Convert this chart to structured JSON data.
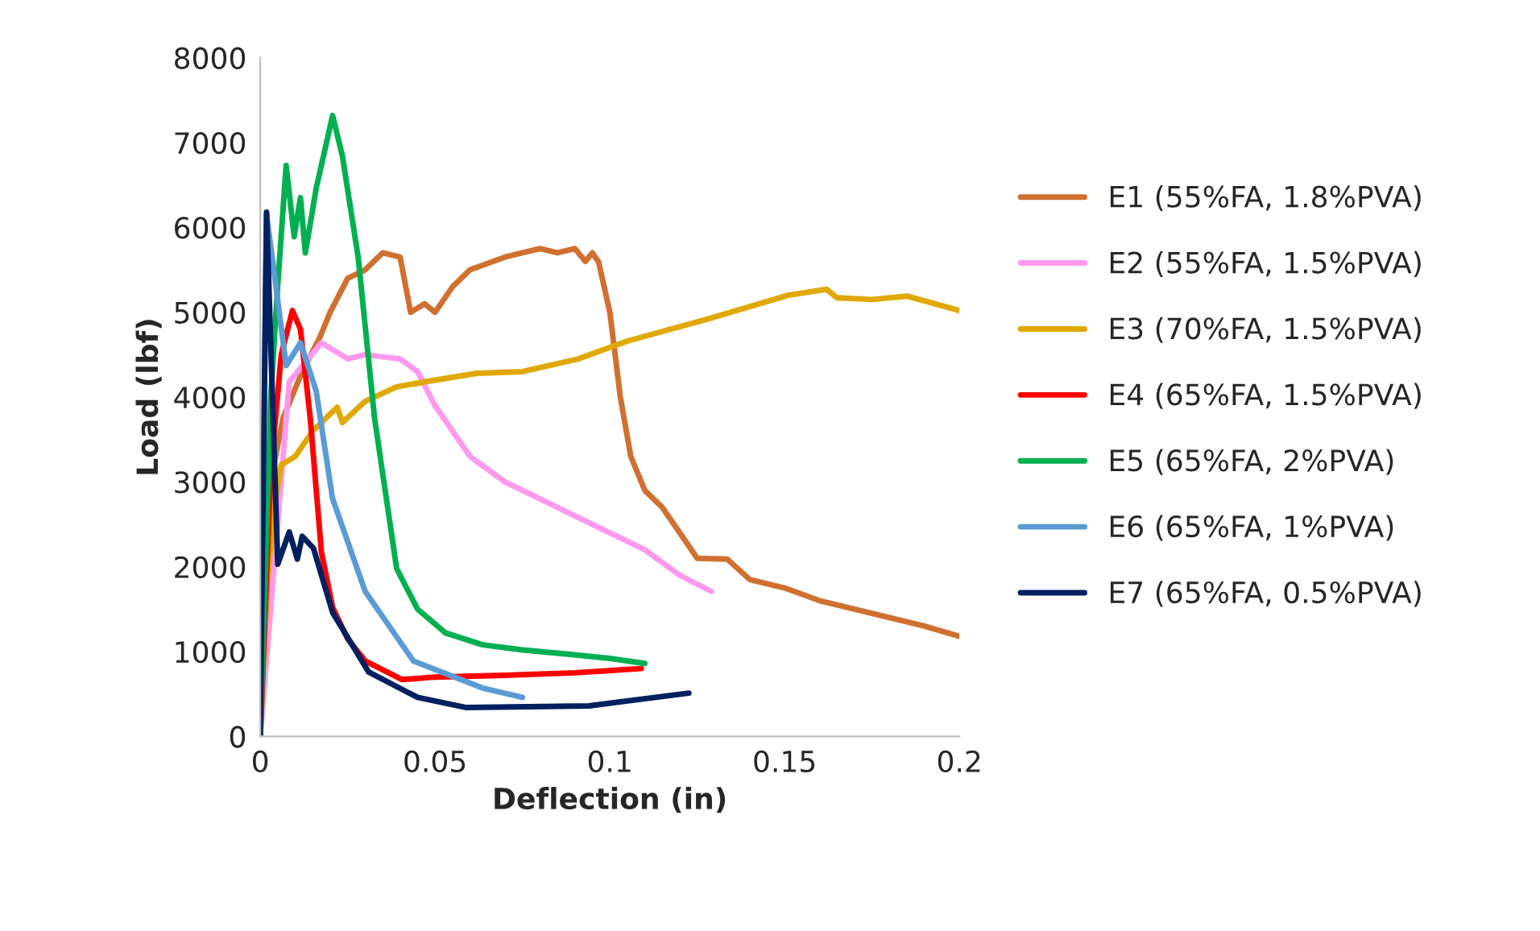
{
  "chart_data": {
    "type": "line",
    "xlabel": "Deflection (in)",
    "ylabel": "Load (lbf)",
    "xlim": [
      0,
      0.2
    ],
    "ylim": [
      0,
      8000
    ],
    "xticks": [
      0,
      0.05,
      0.1,
      0.15,
      0.2
    ],
    "yticks": [
      0,
      1000,
      2000,
      3000,
      4000,
      5000,
      6000,
      7000,
      8000
    ],
    "grid": false,
    "legend": "right",
    "marker": "none",
    "line_style": "solid",
    "series": [
      {
        "name": "E1 (55%FA, 1.8%PVA)",
        "color": "#d07030",
        "x": [
          0,
          0.003,
          0.0065,
          0.012,
          0.017,
          0.02,
          0.025,
          0.03,
          0.035,
          0.04,
          0.043,
          0.047,
          0.05,
          0.055,
          0.06,
          0.07,
          0.08,
          0.085,
          0.09,
          0.093,
          0.095,
          0.0968,
          0.1,
          0.103,
          0.106,
          0.11,
          0.115,
          0.12,
          0.125,
          0.1336,
          0.14,
          0.15,
          0.16,
          0.17,
          0.18,
          0.19,
          0.2
        ],
        "values": [
          0,
          3000,
          3750,
          4300,
          4700,
          5000,
          5400,
          5500,
          5700,
          5650,
          5000,
          5100,
          5000,
          5300,
          5500,
          5650,
          5750,
          5700,
          5750,
          5600,
          5700,
          5590,
          5000,
          4000,
          3300,
          2900,
          2700,
          2400,
          2100,
          2090,
          1850,
          1750,
          1600,
          1500,
          1400,
          1300,
          1180
        ]
      },
      {
        "name": "E2 (55%FA, 1.5%PVA)",
        "color": "#ff99ee",
        "x": [
          0,
          0.0083,
          0.0175,
          0.025,
          0.03,
          0.04,
          0.045,
          0.05,
          0.055,
          0.06,
          0.07,
          0.08,
          0.09,
          0.1,
          0.11,
          0.12,
          0.129
        ],
        "values": [
          0,
          4180,
          4640,
          4450,
          4500,
          4450,
          4300,
          3900,
          3600,
          3300,
          3000,
          2800,
          2600,
          2400,
          2200,
          1900,
          1710
        ]
      },
      {
        "name": "E3 (70%FA, 1.5%PVA)",
        "color": "#e0a800",
        "x": [
          0,
          0.002,
          0.004,
          0.006,
          0.01,
          0.015,
          0.02,
          0.022,
          0.0235,
          0.03,
          0.039,
          0.05,
          0.062,
          0.075,
          0.091,
          0.105,
          0.128,
          0.151,
          0.162,
          0.165,
          0.175,
          0.185,
          0.2
        ],
        "values": [
          0,
          1800,
          2700,
          3200,
          3300,
          3600,
          3800,
          3880,
          3700,
          3950,
          4120,
          4200,
          4280,
          4300,
          4450,
          4660,
          4920,
          5200,
          5270,
          5170,
          5150,
          5190,
          5020
        ]
      },
      {
        "name": "E4 (65%FA, 1.5%PVA)",
        "color": "#ff0000",
        "x": [
          0,
          0.003,
          0.006,
          0.0092,
          0.0115,
          0.0143,
          0.0175,
          0.0207,
          0.025,
          0.03,
          0.0406,
          0.05,
          0.07,
          0.09,
          0.109
        ],
        "values": [
          0,
          3120,
          4500,
          5020,
          4800,
          3750,
          2170,
          1520,
          1150,
          890,
          670,
          700,
          720,
          750,
          800
        ]
      },
      {
        "name": "E5 (65%FA, 2%PVA)",
        "color": "#00b050",
        "x": [
          0,
          0.003,
          0.005,
          0.0074,
          0.0097,
          0.0115,
          0.0129,
          0.016,
          0.0207,
          0.0235,
          0.028,
          0.0327,
          0.039,
          0.045,
          0.053,
          0.0636,
          0.075,
          0.088,
          0.1,
          0.11
        ],
        "values": [
          0,
          4000,
          5320,
          6730,
          5890,
          6350,
          5700,
          6460,
          7320,
          6840,
          5650,
          3750,
          1980,
          1500,
          1220,
          1080,
          1020,
          970,
          920,
          860
        ]
      },
      {
        "name": "E6 (65%FA, 1%PVA)",
        "color": "#5b9bd5",
        "x": [
          0,
          0.0018,
          0.0046,
          0.0074,
          0.0115,
          0.016,
          0.0207,
          0.03,
          0.0438,
          0.0636,
          0.075
        ],
        "values": [
          0,
          6150,
          5270,
          4370,
          4640,
          4070,
          2800,
          1710,
          890,
          570,
          460
        ]
      },
      {
        "name": "E7 (65%FA, 0.5%PVA)",
        "color": "#002060",
        "x": [
          0,
          0.0018,
          0.005,
          0.0083,
          0.0106,
          0.012,
          0.0152,
          0.0207,
          0.031,
          0.045,
          0.059,
          0.094,
          0.1226
        ],
        "values": [
          0,
          6180,
          2030,
          2410,
          2090,
          2360,
          2220,
          1460,
          760,
          460,
          340,
          360,
          510
        ]
      }
    ]
  }
}
